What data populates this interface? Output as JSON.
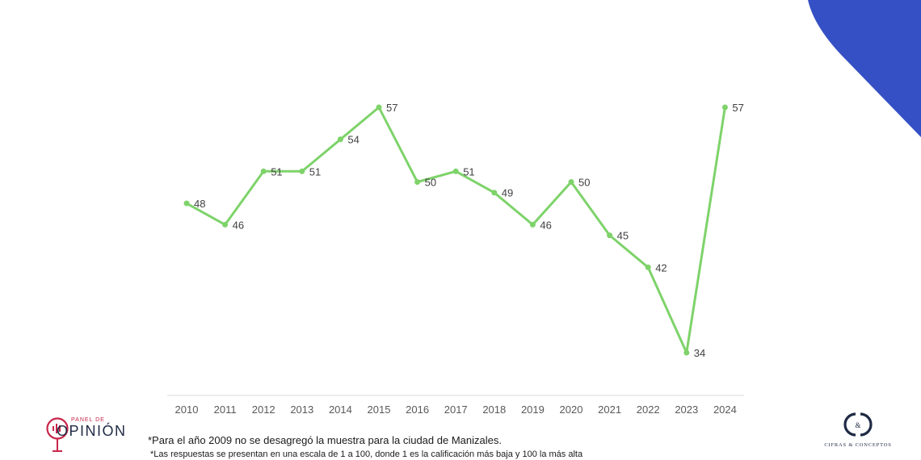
{
  "chart_data": {
    "type": "line",
    "title": "",
    "xlabel": "",
    "ylabel": "",
    "categories": [
      "2010",
      "2011",
      "2012",
      "2013",
      "2014",
      "2015",
      "2016",
      "2017",
      "2018",
      "2019",
      "2020",
      "2021",
      "2022",
      "2023",
      "2024"
    ],
    "series": [
      {
        "values": [
          48,
          46,
          51,
          51,
          54,
          57,
          50,
          51,
          49,
          46,
          50,
          45,
          42,
          34,
          57
        ]
      }
    ],
    "ylim": [
      34,
      57
    ],
    "grid": false,
    "data_labels": true,
    "line_color": "#7ed36a",
    "axis_color": "#d9d9d9"
  },
  "footnotes": {
    "line1": "*Para el año 2009 no se desagregó la muestra para la ciudad de Manizales.",
    "line2": "*Las respuestas se presentan en una escala de 1 a 100, donde 1 es la calificación más baja y 100 la más alta"
  },
  "logos": {
    "left_top": "PANEL DE",
    "left_main": "OPINIÓN",
    "right_brand": "CIFRAS & CONCEPTOS"
  },
  "colors": {
    "corner": "#3450c4",
    "logo_red": "#c8264b",
    "logo_navy": "#1f2a44"
  }
}
